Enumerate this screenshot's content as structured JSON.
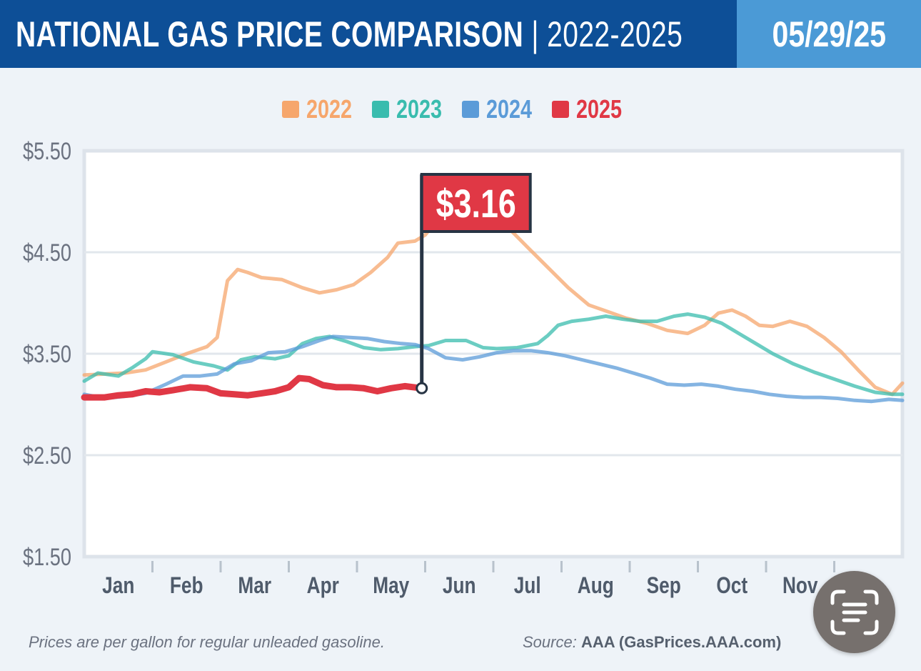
{
  "header": {
    "title_main": "NATIONAL GAS PRICE COMPARISON",
    "title_separator": " | ",
    "title_years": "2022-2025",
    "date": "05/29/25"
  },
  "colors": {
    "header_bg": "#0d4f97",
    "date_bg": "#4b9ad6",
    "2022": "#f6a66c",
    "2023": "#39bcae",
    "2024": "#5b9bd8",
    "2025": "#e03845"
  },
  "chart_data": {
    "type": "line",
    "x_unit": "month (Jan = 0, Dec = 12)",
    "ylim": [
      1.5,
      5.5
    ],
    "y_ticks": [
      {
        "value": 5.5,
        "label": "$5.50"
      },
      {
        "value": 4.5,
        "label": "$4.50"
      },
      {
        "value": 3.5,
        "label": "$3.50"
      },
      {
        "value": 2.5,
        "label": "$2.50"
      },
      {
        "value": 1.5,
        "label": "$1.50"
      }
    ],
    "x_labels": [
      "Jan",
      "Feb",
      "Mar",
      "Apr",
      "May",
      "Jun",
      "Jul",
      "Aug",
      "Sep",
      "Oct",
      "Nov"
    ],
    "grid": true,
    "legend_position": "top-center",
    "series": [
      {
        "name": "2022",
        "color": "#f6a66c",
        "points": [
          [
            0,
            3.29
          ],
          [
            0.3,
            3.3
          ],
          [
            0.6,
            3.31
          ],
          [
            0.9,
            3.34
          ],
          [
            1.2,
            3.42
          ],
          [
            1.5,
            3.5
          ],
          [
            1.8,
            3.57
          ],
          [
            1.95,
            3.66
          ],
          [
            2.1,
            4.22
          ],
          [
            2.25,
            4.33
          ],
          [
            2.4,
            4.3
          ],
          [
            2.6,
            4.25
          ],
          [
            2.9,
            4.23
          ],
          [
            3.2,
            4.15
          ],
          [
            3.45,
            4.1
          ],
          [
            3.7,
            4.13
          ],
          [
            3.95,
            4.18
          ],
          [
            4.2,
            4.3
          ],
          [
            4.45,
            4.45
          ],
          [
            4.6,
            4.59
          ],
          [
            4.85,
            4.61
          ],
          [
            5.0,
            4.67
          ],
          [
            5.2,
            4.84
          ],
          [
            5.5,
            4.96
          ],
          [
            5.75,
            4.94
          ],
          [
            6.0,
            4.85
          ],
          [
            6.25,
            4.72
          ],
          [
            6.5,
            4.55
          ],
          [
            6.8,
            4.35
          ],
          [
            7.1,
            4.15
          ],
          [
            7.4,
            3.98
          ],
          [
            7.7,
            3.91
          ],
          [
            7.95,
            3.85
          ],
          [
            8.25,
            3.8
          ],
          [
            8.55,
            3.73
          ],
          [
            8.85,
            3.7
          ],
          [
            9.1,
            3.78
          ],
          [
            9.3,
            3.9
          ],
          [
            9.5,
            3.93
          ],
          [
            9.7,
            3.87
          ],
          [
            9.9,
            3.78
          ],
          [
            10.1,
            3.77
          ],
          [
            10.35,
            3.82
          ],
          [
            10.6,
            3.77
          ],
          [
            10.85,
            3.66
          ],
          [
            11.1,
            3.52
          ],
          [
            11.35,
            3.34
          ],
          [
            11.6,
            3.17
          ],
          [
            11.85,
            3.1
          ],
          [
            12.0,
            3.21
          ]
        ]
      },
      {
        "name": "2023",
        "color": "#39bcae",
        "points": [
          [
            0,
            3.23
          ],
          [
            0.2,
            3.31
          ],
          [
            0.5,
            3.28
          ],
          [
            0.7,
            3.36
          ],
          [
            0.9,
            3.45
          ],
          [
            1.0,
            3.52
          ],
          [
            1.3,
            3.49
          ],
          [
            1.6,
            3.42
          ],
          [
            1.9,
            3.38
          ],
          [
            2.1,
            3.34
          ],
          [
            2.3,
            3.44
          ],
          [
            2.5,
            3.47
          ],
          [
            2.8,
            3.45
          ],
          [
            3.0,
            3.48
          ],
          [
            3.2,
            3.6
          ],
          [
            3.4,
            3.65
          ],
          [
            3.6,
            3.67
          ],
          [
            3.85,
            3.62
          ],
          [
            4.1,
            3.56
          ],
          [
            4.35,
            3.54
          ],
          [
            4.6,
            3.55
          ],
          [
            4.85,
            3.57
          ],
          [
            5.05,
            3.58
          ],
          [
            5.3,
            3.63
          ],
          [
            5.6,
            3.63
          ],
          [
            5.85,
            3.56
          ],
          [
            6.05,
            3.55
          ],
          [
            6.35,
            3.56
          ],
          [
            6.65,
            3.6
          ],
          [
            6.8,
            3.68
          ],
          [
            6.95,
            3.78
          ],
          [
            7.15,
            3.82
          ],
          [
            7.4,
            3.84
          ],
          [
            7.65,
            3.87
          ],
          [
            7.9,
            3.84
          ],
          [
            8.15,
            3.82
          ],
          [
            8.4,
            3.82
          ],
          [
            8.65,
            3.87
          ],
          [
            8.85,
            3.89
          ],
          [
            9.1,
            3.86
          ],
          [
            9.35,
            3.8
          ],
          [
            9.6,
            3.7
          ],
          [
            9.85,
            3.6
          ],
          [
            10.1,
            3.5
          ],
          [
            10.4,
            3.4
          ],
          [
            10.7,
            3.32
          ],
          [
            11.0,
            3.25
          ],
          [
            11.3,
            3.18
          ],
          [
            11.6,
            3.12
          ],
          [
            11.85,
            3.1
          ],
          [
            12.0,
            3.1
          ]
        ]
      },
      {
        "name": "2024",
        "color": "#5b9bd8",
        "points": [
          [
            0,
            3.1
          ],
          [
            0.3,
            3.06
          ],
          [
            0.6,
            3.08
          ],
          [
            0.9,
            3.11
          ],
          [
            1.2,
            3.2
          ],
          [
            1.45,
            3.28
          ],
          [
            1.7,
            3.28
          ],
          [
            1.95,
            3.3
          ],
          [
            2.2,
            3.4
          ],
          [
            2.45,
            3.43
          ],
          [
            2.7,
            3.51
          ],
          [
            2.95,
            3.52
          ],
          [
            3.2,
            3.57
          ],
          [
            3.45,
            3.63
          ],
          [
            3.65,
            3.67
          ],
          [
            3.9,
            3.66
          ],
          [
            4.15,
            3.65
          ],
          [
            4.4,
            3.62
          ],
          [
            4.65,
            3.6
          ],
          [
            4.85,
            3.59
          ],
          [
            5.05,
            3.55
          ],
          [
            5.3,
            3.46
          ],
          [
            5.55,
            3.44
          ],
          [
            5.8,
            3.47
          ],
          [
            6.05,
            3.51
          ],
          [
            6.3,
            3.53
          ],
          [
            6.55,
            3.53
          ],
          [
            6.8,
            3.51
          ],
          [
            7.05,
            3.48
          ],
          [
            7.3,
            3.44
          ],
          [
            7.55,
            3.4
          ],
          [
            7.8,
            3.36
          ],
          [
            8.05,
            3.31
          ],
          [
            8.3,
            3.26
          ],
          [
            8.55,
            3.2
          ],
          [
            8.8,
            3.19
          ],
          [
            9.05,
            3.2
          ],
          [
            9.3,
            3.18
          ],
          [
            9.55,
            3.15
          ],
          [
            9.8,
            3.13
          ],
          [
            10.05,
            3.1
          ],
          [
            10.3,
            3.08
          ],
          [
            10.55,
            3.07
          ],
          [
            10.8,
            3.07
          ],
          [
            11.05,
            3.06
          ],
          [
            11.3,
            3.04
          ],
          [
            11.55,
            3.03
          ],
          [
            11.8,
            3.05
          ],
          [
            12.0,
            3.04
          ]
        ]
      },
      {
        "name": "2025",
        "color": "#e03845",
        "points": [
          [
            0,
            3.07
          ],
          [
            0.3,
            3.07
          ],
          [
            0.5,
            3.09
          ],
          [
            0.7,
            3.1
          ],
          [
            0.9,
            3.13
          ],
          [
            1.1,
            3.12
          ],
          [
            1.3,
            3.14
          ],
          [
            1.55,
            3.17
          ],
          [
            1.8,
            3.16
          ],
          [
            2.0,
            3.11
          ],
          [
            2.2,
            3.1
          ],
          [
            2.4,
            3.09
          ],
          [
            2.6,
            3.11
          ],
          [
            2.8,
            3.13
          ],
          [
            3.0,
            3.17
          ],
          [
            3.15,
            3.26
          ],
          [
            3.3,
            3.25
          ],
          [
            3.5,
            3.19
          ],
          [
            3.7,
            3.17
          ],
          [
            3.9,
            3.17
          ],
          [
            4.1,
            3.16
          ],
          [
            4.3,
            3.13
          ],
          [
            4.5,
            3.16
          ],
          [
            4.7,
            3.18
          ],
          [
            4.95,
            3.16
          ]
        ]
      }
    ],
    "callout": {
      "x": 4.95,
      "y": 3.16,
      "label": "$3.16"
    }
  },
  "footer": {
    "note": "Prices are per gallon for regular unleaded gasoline.",
    "source_prefix": "Source:",
    "source_name": "AAA (GasPrices.AAA.com)"
  },
  "overlay": {
    "scan_icon": "text-scan-icon"
  }
}
